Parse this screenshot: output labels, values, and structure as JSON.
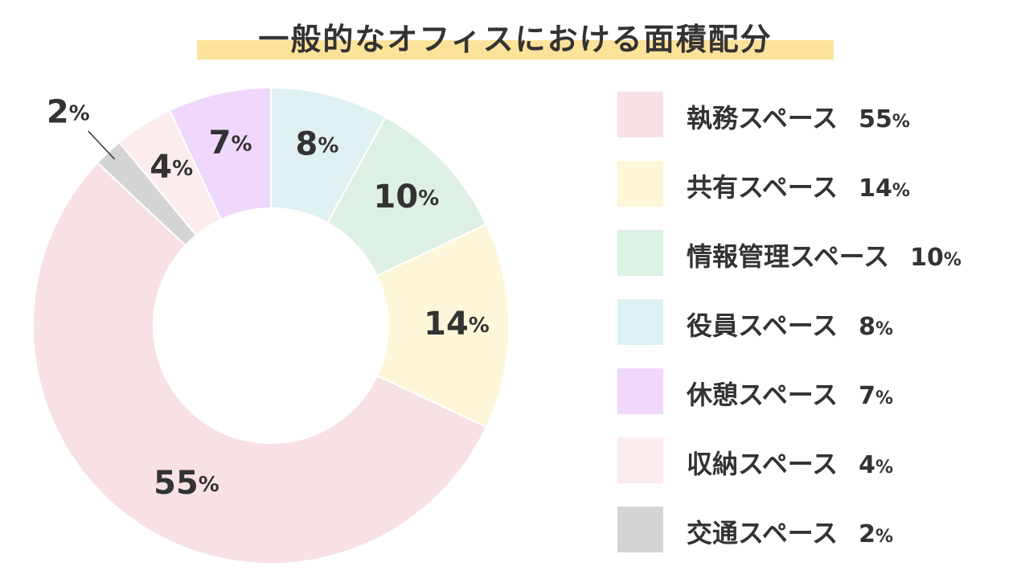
{
  "title": "一般的なオフィスにおける面積配分",
  "chart_data": {
    "type": "pie",
    "title": "一般的なオフィスにおける面積配分",
    "unit": "%",
    "categories": [
      "執務スペース",
      "共有スペース",
      "情報管理スペース",
      "役員スペース",
      "休憩スペース",
      "収納スペース",
      "交通スペース"
    ],
    "values": [
      55,
      14,
      10,
      8,
      7,
      4,
      2
    ],
    "colors": [
      "#f7e1e4",
      "#fdf6d8",
      "#dcf0e3",
      "#dff0f3",
      "#efd8fb",
      "#fdecee",
      "#d4d4d6"
    ],
    "slice_labels": [
      {
        "num": "55",
        "pct": "%"
      },
      {
        "num": "14",
        "pct": "%"
      },
      {
        "num": "10",
        "pct": "%"
      },
      {
        "num": "8",
        "pct": "%"
      },
      {
        "num": "7",
        "pct": "%"
      },
      {
        "num": "4",
        "pct": "%"
      },
      {
        "num": "2",
        "pct": "%"
      }
    ],
    "legend_placement": "right",
    "donut": true
  },
  "legend": [
    {
      "name": "執務スペース",
      "value": "55",
      "pct": "%",
      "color": "#f7e1e4"
    },
    {
      "name": "共有スペース",
      "value": "14",
      "pct": "%",
      "color": "#fdf6d8"
    },
    {
      "name": "情報管理スペース",
      "value": "10",
      "pct": "%",
      "color": "#dcf0e3"
    },
    {
      "name": "役員スペース",
      "value": "8",
      "pct": "%",
      "color": "#dff0f3"
    },
    {
      "name": "休憩スペース",
      "value": "7",
      "pct": "%",
      "color": "#efd8fb"
    },
    {
      "name": "収納スペース",
      "value": "4",
      "pct": "%",
      "color": "#fdecee"
    },
    {
      "name": "交通スペース",
      "value": "2",
      "pct": "%",
      "color": "#d4d4d6"
    }
  ]
}
